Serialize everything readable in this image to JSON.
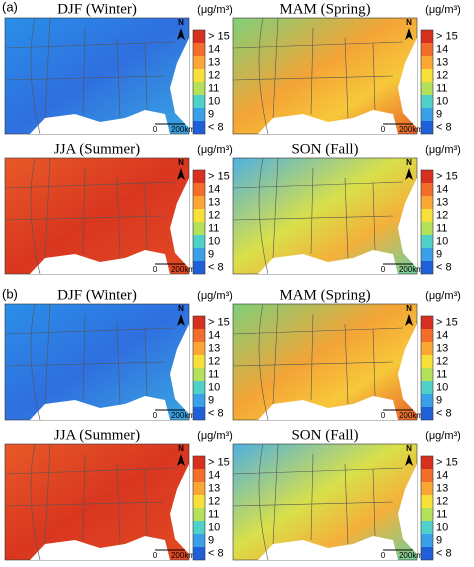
{
  "parts": [
    {
      "label": "(a)",
      "panels": [
        {
          "title": "DJF (Winter)"
        },
        {
          "title": "MAM (Spring)"
        },
        {
          "title": "JJA (Summer)"
        },
        {
          "title": "SON (Fall)"
        }
      ]
    },
    {
      "label": "(b)",
      "panels": [
        {
          "title": "DJF (Winter)"
        },
        {
          "title": "MAM (Spring)"
        },
        {
          "title": "JJA (Summer)"
        },
        {
          "title": "SON (Fall)"
        }
      ]
    }
  ],
  "colorbar": {
    "unit": "(μg/m³)",
    "labels": [
      "> 15",
      "14",
      "13",
      "12",
      "11",
      "10",
      "9",
      "< 8"
    ],
    "colors": [
      "#d7301f",
      "#f46d2a",
      "#fca636",
      "#f7e03a",
      "#b5e05a",
      "#4fd0c8",
      "#3aa0e8",
      "#1f5fd8"
    ]
  },
  "north_label": "N",
  "scale": {
    "start": "0",
    "end": "200km"
  }
}
